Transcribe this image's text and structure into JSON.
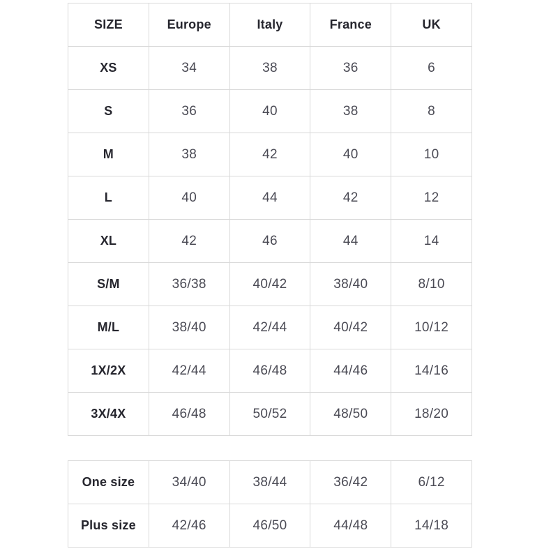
{
  "colors": {
    "background": "#ffffff",
    "border": "#d9d9d9",
    "header_text": "#26262e",
    "value_text": "#4b4b55"
  },
  "chart_data": [
    {
      "type": "table",
      "columns": [
        "SIZE",
        "Europe",
        "Italy",
        "France",
        "UK"
      ],
      "rows": [
        {
          "label": "XS",
          "values": [
            "34",
            "38",
            "36",
            "6"
          ]
        },
        {
          "label": "S",
          "values": [
            "36",
            "40",
            "38",
            "8"
          ]
        },
        {
          "label": "M",
          "values": [
            "38",
            "42",
            "40",
            "10"
          ]
        },
        {
          "label": "L",
          "values": [
            "40",
            "44",
            "42",
            "12"
          ]
        },
        {
          "label": "XL",
          "values": [
            "42",
            "46",
            "44",
            "14"
          ]
        },
        {
          "label": "S/M",
          "values": [
            "36/38",
            "40/42",
            "38/40",
            "8/10"
          ]
        },
        {
          "label": "M/L",
          "values": [
            "38/40",
            "42/44",
            "40/42",
            "10/12"
          ]
        },
        {
          "label": "1X/2X",
          "values": [
            "42/44",
            "46/48",
            "44/46",
            "14/16"
          ]
        },
        {
          "label": "3X/4X",
          "values": [
            "46/48",
            "50/52",
            "48/50",
            "18/20"
          ]
        }
      ]
    },
    {
      "type": "table",
      "columns": [],
      "rows": [
        {
          "label": "One size",
          "values": [
            "34/40",
            "38/44",
            "36/42",
            "6/12"
          ]
        },
        {
          "label": "Plus size",
          "values": [
            "42/46",
            "46/50",
            "44/48",
            "14/18"
          ]
        }
      ]
    }
  ]
}
